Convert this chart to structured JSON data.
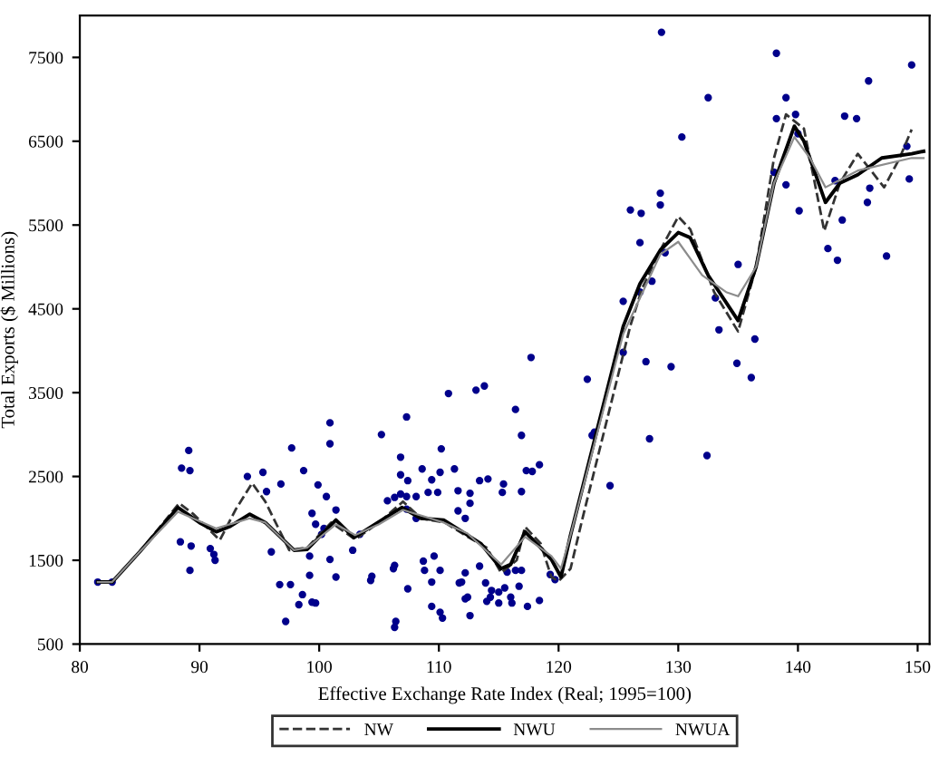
{
  "chart_data": {
    "type": "line",
    "xlabel": "Effective Exchange Rate Index (Real; 1995=100)",
    "ylabel": "Total Exports ($ Millions)",
    "xlim": [
      80,
      151
    ],
    "ylim": [
      500,
      8000
    ],
    "xticks": [
      80,
      90,
      100,
      110,
      120,
      130,
      140,
      150
    ],
    "yticks": [
      500,
      1500,
      2500,
      3500,
      4500,
      5500,
      6500,
      7500
    ],
    "grid": false,
    "legend": "bottom",
    "series": [
      {
        "type": "scatter",
        "color": "#00008b",
        "marker": "circle",
        "x": [
          81.5,
          82.7,
          89.1,
          88.5,
          89.2,
          88.4,
          89.3,
          89.2,
          90.9,
          91.2,
          91.3,
          94.0,
          95.3,
          95.6,
          96.8,
          96.0,
          97.7,
          98.7,
          99.9,
          100.9,
          100.9,
          100.6,
          101.4,
          99.4,
          99.7,
          100.2,
          100.4,
          99.2,
          100.9,
          99.2,
          96.7,
          97.6,
          98.6,
          98.3,
          99.4,
          99.7,
          97.2,
          101.4,
          102.8,
          103.4,
          105.2,
          104.3,
          106.2,
          106.3,
          117.7,
          110.8,
          113.1,
          113.8,
          107.3,
          116.4,
          116.9,
          110.2,
          106.8,
          106.8,
          108.6,
          109.4,
          110.1,
          111.3,
          107.4,
          105.7,
          106.3,
          106.8,
          107.3,
          108.1,
          109.1,
          109.9,
          111.6,
          112.6,
          113.4,
          114.1,
          115.4,
          115.3,
          117.3,
          117.8,
          116.9,
          107.3,
          108.1,
          111.6,
          112.2,
          112.6,
          104.4,
          106.3,
          107.4,
          108.7,
          108.8,
          109.4,
          109.6,
          110.1,
          109.4,
          110.1,
          110.3,
          106.4,
          111.7,
          111.9,
          112.2,
          112.2,
          112.4,
          112.6,
          113.4,
          113.9,
          114.0,
          114.4,
          114.3,
          115.0,
          115.0,
          115.5,
          115.7,
          116.0,
          116.1,
          116.4,
          116.7,
          116.9,
          117.4,
          118.4,
          119.3,
          119.7,
          122.4,
          122.8,
          124.3,
          128.6,
          138.2,
          149.5,
          145.9,
          132.5,
          139.0,
          143.9,
          144.9,
          138.2,
          139.8,
          140.0,
          130.3,
          149.1,
          138.0,
          143.1,
          149.3,
          139.0,
          146.0,
          145.8,
          143.7,
          140.1,
          142.5,
          143.3,
          147.4,
          128.5,
          128.5,
          126.0,
          126.9,
          126.8,
          128.9,
          127.8,
          126.8,
          125.4,
          125.4,
          127.3,
          129.4,
          133.1,
          133.4,
          135.0,
          136.4,
          134.9,
          136.1,
          123.0,
          127.6,
          132.4,
          118.4
        ],
        "values": [
          1240,
          1240,
          2810,
          2600,
          2570,
          1720,
          1670,
          1380,
          1640,
          1570,
          1500,
          2500,
          2550,
          2320,
          2410,
          1600,
          2840,
          2570,
          2400,
          3140,
          2890,
          2260,
          2100,
          2060,
          1930,
          1810,
          1880,
          1550,
          1510,
          1320,
          1210,
          1210,
          1090,
          970,
          1000,
          990,
          770,
          1300,
          1620,
          1810,
          3000,
          1260,
          1400,
          700,
          3920,
          3490,
          3530,
          3580,
          3210,
          3300,
          2990,
          2830,
          2730,
          2520,
          2590,
          2460,
          2550,
          2590,
          2450,
          2210,
          2250,
          2290,
          2260,
          2260,
          2310,
          2310,
          2330,
          2300,
          2450,
          2470,
          2410,
          2310,
          2570,
          2560,
          2320,
          2110,
          2000,
          2090,
          2000,
          2180,
          1310,
          1440,
          1160,
          1490,
          1380,
          1240,
          1550,
          1380,
          950,
          880,
          810,
          770,
          1230,
          1240,
          1350,
          1040,
          1060,
          840,
          1430,
          1230,
          1010,
          1140,
          1060,
          1120,
          990,
          1170,
          1360,
          1060,
          990,
          1380,
          1190,
          1380,
          950,
          1020,
          1330,
          1270,
          3660,
          2990,
          2390,
          7800,
          7550,
          7410,
          7220,
          7020,
          7020,
          6800,
          6770,
          6770,
          6820,
          6590,
          6550,
          6440,
          6130,
          6030,
          6050,
          5980,
          5940,
          5770,
          5560,
          5670,
          5220,
          5080,
          5130,
          5880,
          5740,
          5680,
          5640,
          5290,
          5170,
          4830,
          4700,
          4590,
          3980,
          3870,
          3810,
          4630,
          4250,
          5030,
          4140,
          3850,
          3680,
          3030,
          2950,
          2750,
          2640
        ]
      },
      {
        "name": "NW",
        "color": "#333333",
        "line_style": "dashed",
        "x": [
          81.5,
          82.7,
          85,
          88.3,
          89.5,
          91.7,
          93,
          94.4,
          95.5,
          97.5,
          99,
          101,
          103,
          105,
          107,
          108.5,
          110.5,
          112.4,
          114,
          115.2,
          116.5,
          117.2,
          118.5,
          119.4,
          120,
          121,
          122,
          126,
          127,
          128.5,
          130,
          131,
          133,
          135,
          136.5,
          138,
          139,
          140.5,
          142.2,
          143.5,
          145,
          147.2,
          148.5,
          149.5
        ],
        "values": [
          1240,
          1240,
          1600,
          2180,
          2050,
          1740,
          2100,
          2420,
          2200,
          1620,
          1650,
          1950,
          1750,
          1950,
          2200,
          2000,
          1950,
          1780,
          1650,
          1350,
          1500,
          1900,
          1700,
          1300,
          1250,
          1400,
          2000,
          4300,
          4750,
          5200,
          5600,
          5450,
          4700,
          4230,
          5000,
          6300,
          6820,
          6650,
          5430,
          6000,
          6350,
          5950,
          6300,
          6640
        ]
      },
      {
        "name": "NWU",
        "color": "#000000",
        "line_style": "solid",
        "x": [
          81.5,
          82.7,
          85,
          88.2,
          90,
          91.4,
          92.5,
          94.2,
          95.5,
          97.9,
          99,
          101.4,
          102.9,
          104.9,
          106.9,
          108.5,
          110.4,
          112.4,
          113.5,
          115.2,
          116,
          117.2,
          118.5,
          119.4,
          120.2,
          121,
          125.4,
          126.8,
          128.5,
          130,
          131,
          132.5,
          135,
          136.5,
          138,
          139.7,
          140.5,
          142.3,
          143.5,
          145,
          147,
          149.5,
          150.5
        ],
        "values": [
          1240,
          1240,
          1600,
          2130,
          1950,
          1840,
          1900,
          2050,
          1950,
          1620,
          1630,
          1980,
          1770,
          1950,
          2130,
          2000,
          1980,
          1800,
          1700,
          1400,
          1450,
          1840,
          1650,
          1510,
          1300,
          1800,
          4290,
          4800,
          5200,
          5410,
          5350,
          4900,
          4360,
          5000,
          6000,
          6680,
          6500,
          5770,
          6000,
          6100,
          6300,
          6350,
          6380
        ]
      },
      {
        "name": "NWUA",
        "color": "#8c8c8c",
        "line_style": "solid",
        "x": [
          81.5,
          82.7,
          85,
          88.2,
          91.4,
          94.2,
          95.5,
          97.9,
          99,
          101.4,
          103,
          105,
          107,
          110.4,
          112.4,
          115.2,
          117.2,
          119.4,
          120.2,
          121,
          125.4,
          128.5,
          130,
          132,
          134,
          135,
          136.5,
          138,
          139.7,
          141,
          142.3,
          145,
          149.5,
          150.5
        ],
        "values": [
          1240,
          1240,
          1600,
          2080,
          1880,
          2000,
          1950,
          1620,
          1650,
          1930,
          1800,
          1930,
          2100,
          1950,
          1820,
          1450,
          1780,
          1550,
          1400,
          1800,
          4200,
          5150,
          5300,
          4900,
          4700,
          4650,
          5000,
          6000,
          6550,
          6300,
          5950,
          6150,
          6300,
          6300
        ]
      }
    ]
  }
}
